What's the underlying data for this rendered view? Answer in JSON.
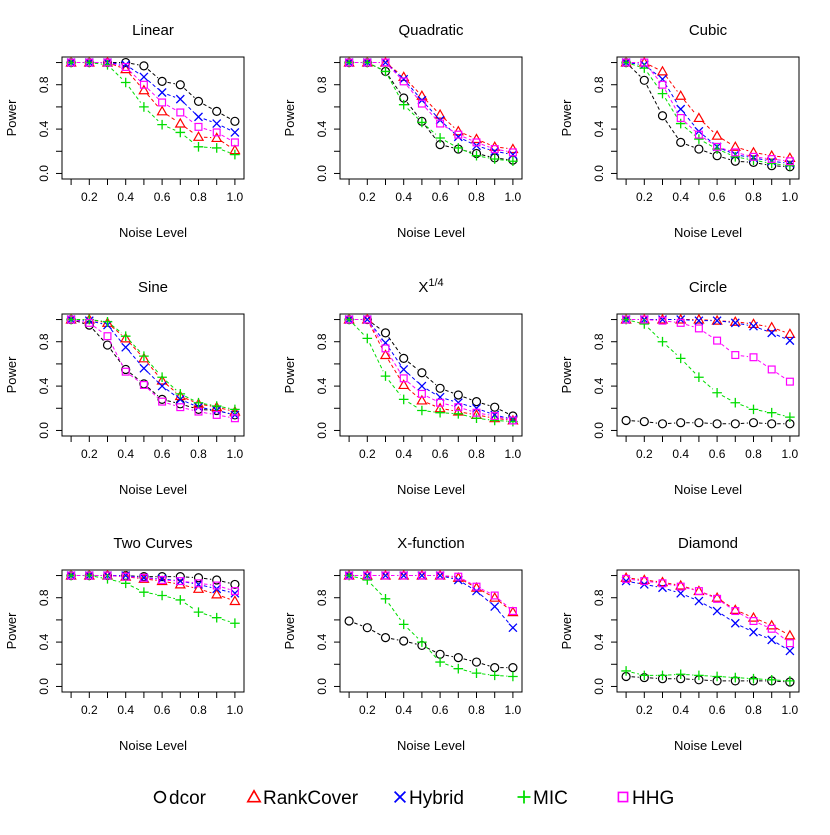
{
  "chart_data": [
    {
      "type": "line",
      "title": "Linear",
      "xlabel": "Noise Level",
      "ylabel": "Power",
      "x": [
        0.1,
        0.2,
        0.3,
        0.4,
        0.5,
        0.6,
        0.7,
        0.8,
        0.9,
        1.0
      ],
      "xlim": [
        0.05,
        1.05
      ],
      "ylim": [
        -0.05,
        1.05
      ],
      "xticks": [
        "0.2",
        "0.4",
        "0.6",
        "0.8",
        "1.0"
      ],
      "yticks": [
        "0.0",
        "0.4",
        "0.8"
      ],
      "series": [
        {
          "name": "dcor",
          "values": [
            1.0,
            1.0,
            1.0,
            1.0,
            0.97,
            0.83,
            0.8,
            0.65,
            0.56,
            0.47
          ]
        },
        {
          "name": "RankCover",
          "values": [
            1.0,
            1.0,
            1.0,
            0.94,
            0.75,
            0.56,
            0.45,
            0.33,
            0.32,
            0.21
          ]
        },
        {
          "name": "Hybrid",
          "values": [
            1.0,
            1.0,
            1.0,
            0.98,
            0.87,
            0.73,
            0.67,
            0.51,
            0.45,
            0.37
          ]
        },
        {
          "name": "MIC",
          "values": [
            1.0,
            1.0,
            0.98,
            0.82,
            0.6,
            0.44,
            0.37,
            0.24,
            0.23,
            0.17
          ]
        },
        {
          "name": "HHG",
          "values": [
            1.0,
            1.0,
            1.0,
            0.96,
            0.8,
            0.64,
            0.55,
            0.42,
            0.37,
            0.28
          ]
        }
      ]
    },
    {
      "type": "line",
      "title": "Quadratic",
      "xlabel": "Noise Level",
      "ylabel": "Power",
      "x": [
        0.1,
        0.2,
        0.3,
        0.4,
        0.5,
        0.6,
        0.7,
        0.8,
        0.9,
        1.0
      ],
      "xlim": [
        0.05,
        1.05
      ],
      "ylim": [
        -0.05,
        1.05
      ],
      "xticks": [
        "0.2",
        "0.4",
        "0.6",
        "0.8",
        "1.0"
      ],
      "yticks": [
        "0.0",
        "0.4",
        "0.8"
      ],
      "series": [
        {
          "name": "dcor",
          "values": [
            1.0,
            1.0,
            0.92,
            0.68,
            0.47,
            0.26,
            0.22,
            0.18,
            0.14,
            0.12
          ]
        },
        {
          "name": "RankCover",
          "values": [
            1.0,
            1.0,
            1.0,
            0.87,
            0.7,
            0.53,
            0.38,
            0.31,
            0.24,
            0.22
          ]
        },
        {
          "name": "Hybrid",
          "values": [
            1.0,
            1.0,
            1.0,
            0.85,
            0.66,
            0.48,
            0.33,
            0.25,
            0.2,
            0.17
          ]
        },
        {
          "name": "MIC",
          "values": [
            1.0,
            1.0,
            0.92,
            0.62,
            0.46,
            0.32,
            0.23,
            0.16,
            0.13,
            0.11
          ]
        },
        {
          "name": "HHG",
          "values": [
            1.0,
            1.0,
            1.0,
            0.83,
            0.63,
            0.45,
            0.35,
            0.28,
            0.22,
            0.19
          ]
        }
      ]
    },
    {
      "type": "line",
      "title": "Cubic",
      "xlabel": "Noise Level",
      "ylabel": "Power",
      "x": [
        0.1,
        0.2,
        0.3,
        0.4,
        0.5,
        0.6,
        0.7,
        0.8,
        0.9,
        1.0
      ],
      "xlim": [
        0.05,
        1.05
      ],
      "ylim": [
        -0.05,
        1.05
      ],
      "xticks": [
        "0.2",
        "0.4",
        "0.6",
        "0.8",
        "1.0"
      ],
      "yticks": [
        "0.0",
        "0.4",
        "0.8"
      ],
      "series": [
        {
          "name": "dcor",
          "values": [
            1.0,
            0.84,
            0.52,
            0.28,
            0.22,
            0.16,
            0.11,
            0.1,
            0.07,
            0.06
          ]
        },
        {
          "name": "RankCover",
          "values": [
            1.0,
            1.0,
            0.92,
            0.7,
            0.5,
            0.34,
            0.24,
            0.19,
            0.16,
            0.14
          ]
        },
        {
          "name": "Hybrid",
          "values": [
            1.0,
            0.98,
            0.85,
            0.58,
            0.38,
            0.24,
            0.17,
            0.14,
            0.11,
            0.09
          ]
        },
        {
          "name": "MIC",
          "values": [
            1.0,
            0.95,
            0.72,
            0.45,
            0.31,
            0.22,
            0.15,
            0.12,
            0.09,
            0.07
          ]
        },
        {
          "name": "HHG",
          "values": [
            1.0,
            1.0,
            0.8,
            0.5,
            0.35,
            0.24,
            0.19,
            0.15,
            0.13,
            0.11
          ]
        }
      ]
    },
    {
      "type": "line",
      "title": "Sine",
      "xlabel": "Noise Level",
      "ylabel": "Power",
      "x": [
        0.1,
        0.2,
        0.3,
        0.4,
        0.5,
        0.6,
        0.7,
        0.8,
        0.9,
        1.0
      ],
      "xlim": [
        0.05,
        1.05
      ],
      "ylim": [
        -0.05,
        1.05
      ],
      "xticks": [
        "0.2",
        "0.4",
        "0.6",
        "0.8",
        "1.0"
      ],
      "yticks": [
        "0.0",
        "0.4",
        "0.8"
      ],
      "series": [
        {
          "name": "dcor",
          "values": [
            1.0,
            0.95,
            0.77,
            0.55,
            0.42,
            0.28,
            0.24,
            0.19,
            0.18,
            0.14
          ]
        },
        {
          "name": "RankCover",
          "values": [
            1.0,
            1.0,
            0.97,
            0.83,
            0.65,
            0.45,
            0.31,
            0.24,
            0.21,
            0.17
          ]
        },
        {
          "name": "Hybrid",
          "values": [
            1.0,
            0.99,
            0.95,
            0.75,
            0.56,
            0.4,
            0.28,
            0.21,
            0.18,
            0.14
          ]
        },
        {
          "name": "MIC",
          "values": [
            1.0,
            1.0,
            0.98,
            0.85,
            0.67,
            0.48,
            0.33,
            0.25,
            0.22,
            0.19
          ]
        },
        {
          "name": "HHG",
          "values": [
            1.0,
            0.97,
            0.85,
            0.53,
            0.41,
            0.26,
            0.21,
            0.17,
            0.14,
            0.11
          ]
        }
      ]
    },
    {
      "type": "line",
      "title": "X",
      "title_superscript": "1/4",
      "xlabel": "Noise Level",
      "ylabel": "Power",
      "x": [
        0.1,
        0.2,
        0.3,
        0.4,
        0.5,
        0.6,
        0.7,
        0.8,
        0.9,
        1.0
      ],
      "xlim": [
        0.05,
        1.05
      ],
      "ylim": [
        -0.05,
        1.05
      ],
      "xticks": [
        "0.2",
        "0.4",
        "0.6",
        "0.8",
        "1.0"
      ],
      "yticks": [
        "0.0",
        "0.4",
        "0.8"
      ],
      "series": [
        {
          "name": "dcor",
          "values": [
            1.0,
            1.0,
            0.88,
            0.65,
            0.52,
            0.38,
            0.32,
            0.26,
            0.21,
            0.13
          ]
        },
        {
          "name": "RankCover",
          "values": [
            1.0,
            1.0,
            0.68,
            0.41,
            0.27,
            0.2,
            0.17,
            0.14,
            0.11,
            0.09
          ]
        },
        {
          "name": "Hybrid",
          "values": [
            1.0,
            1.0,
            0.79,
            0.55,
            0.4,
            0.3,
            0.25,
            0.2,
            0.14,
            0.1
          ]
        },
        {
          "name": "MIC",
          "values": [
            1.0,
            0.83,
            0.49,
            0.28,
            0.18,
            0.16,
            0.15,
            0.11,
            0.09,
            0.08
          ]
        },
        {
          "name": "HHG",
          "values": [
            1.0,
            1.0,
            0.74,
            0.47,
            0.33,
            0.25,
            0.21,
            0.16,
            0.13,
            0.09
          ]
        }
      ]
    },
    {
      "type": "line",
      "title": "Circle",
      "xlabel": "Noise Level",
      "ylabel": "Power",
      "x": [
        0.1,
        0.2,
        0.3,
        0.4,
        0.5,
        0.6,
        0.7,
        0.8,
        0.9,
        1.0
      ],
      "xlim": [
        0.05,
        1.05
      ],
      "ylim": [
        -0.05,
        1.05
      ],
      "xticks": [
        "0.2",
        "0.4",
        "0.6",
        "0.8",
        "1.0"
      ],
      "yticks": [
        "0.0",
        "0.4",
        "0.8"
      ],
      "series": [
        {
          "name": "dcor",
          "values": [
            0.09,
            0.08,
            0.06,
            0.07,
            0.07,
            0.06,
            0.06,
            0.07,
            0.06,
            0.06
          ]
        },
        {
          "name": "RankCover",
          "values": [
            1.0,
            1.0,
            1.0,
            1.0,
            1.0,
            0.99,
            0.98,
            0.96,
            0.93,
            0.87
          ]
        },
        {
          "name": "Hybrid",
          "values": [
            1.0,
            1.0,
            1.0,
            1.0,
            0.99,
            0.99,
            0.97,
            0.94,
            0.88,
            0.81
          ]
        },
        {
          "name": "MIC",
          "values": [
            1.0,
            0.96,
            0.8,
            0.65,
            0.48,
            0.34,
            0.25,
            0.19,
            0.16,
            0.12
          ]
        },
        {
          "name": "HHG",
          "values": [
            1.0,
            1.0,
            0.99,
            0.97,
            0.92,
            0.81,
            0.68,
            0.66,
            0.55,
            0.44
          ]
        }
      ]
    },
    {
      "type": "line",
      "title": "Two Curves",
      "xlabel": "Noise Level",
      "ylabel": "Power",
      "x": [
        0.1,
        0.2,
        0.3,
        0.4,
        0.5,
        0.6,
        0.7,
        0.8,
        0.9,
        1.0
      ],
      "xlim": [
        0.05,
        1.05
      ],
      "ylim": [
        -0.05,
        1.05
      ],
      "xticks": [
        "0.2",
        "0.4",
        "0.6",
        "0.8",
        "1.0"
      ],
      "yticks": [
        "0.0",
        "0.4",
        "0.8"
      ],
      "series": [
        {
          "name": "dcor",
          "values": [
            1.0,
            1.0,
            1.0,
            1.0,
            0.99,
            0.99,
            0.99,
            0.98,
            0.96,
            0.92
          ]
        },
        {
          "name": "RankCover",
          "values": [
            1.0,
            1.0,
            1.0,
            0.99,
            0.97,
            0.95,
            0.92,
            0.88,
            0.83,
            0.77
          ]
        },
        {
          "name": "Hybrid",
          "values": [
            1.0,
            1.0,
            1.0,
            1.0,
            0.98,
            0.97,
            0.95,
            0.92,
            0.88,
            0.84
          ]
        },
        {
          "name": "MIC",
          "values": [
            1.0,
            1.0,
            0.97,
            0.93,
            0.85,
            0.82,
            0.78,
            0.67,
            0.62,
            0.57
          ]
        },
        {
          "name": "HHG",
          "values": [
            1.0,
            1.0,
            1.0,
            0.99,
            0.98,
            0.96,
            0.95,
            0.93,
            0.91,
            0.86
          ]
        }
      ]
    },
    {
      "type": "line",
      "title": "X-function",
      "xlabel": "Noise Level",
      "ylabel": "Power",
      "x": [
        0.1,
        0.2,
        0.3,
        0.4,
        0.5,
        0.6,
        0.7,
        0.8,
        0.9,
        1.0
      ],
      "xlim": [
        0.05,
        1.05
      ],
      "ylim": [
        -0.05,
        1.05
      ],
      "xticks": [
        "0.2",
        "0.4",
        "0.6",
        "0.8",
        "1.0"
      ],
      "yticks": [
        "0.0",
        "0.4",
        "0.8"
      ],
      "series": [
        {
          "name": "dcor",
          "values": [
            0.59,
            0.53,
            0.44,
            0.41,
            0.37,
            0.29,
            0.26,
            0.22,
            0.17,
            0.17
          ]
        },
        {
          "name": "RankCover",
          "values": [
            1.0,
            1.0,
            1.0,
            1.0,
            1.0,
            1.0,
            0.98,
            0.89,
            0.8,
            0.67
          ]
        },
        {
          "name": "Hybrid",
          "values": [
            1.0,
            1.0,
            1.0,
            1.0,
            1.0,
            1.0,
            0.96,
            0.86,
            0.72,
            0.53
          ]
        },
        {
          "name": "MIC",
          "values": [
            1.0,
            0.96,
            0.79,
            0.56,
            0.4,
            0.22,
            0.16,
            0.12,
            0.1,
            0.09
          ]
        },
        {
          "name": "HHG",
          "values": [
            1.0,
            1.0,
            1.0,
            1.0,
            1.0,
            1.0,
            0.99,
            0.9,
            0.82,
            0.68
          ]
        }
      ]
    },
    {
      "type": "line",
      "title": "Diamond",
      "xlabel": "Noise Level",
      "ylabel": "Power",
      "x": [
        0.1,
        0.2,
        0.3,
        0.4,
        0.5,
        0.6,
        0.7,
        0.8,
        0.9,
        1.0
      ],
      "xlim": [
        0.05,
        1.05
      ],
      "ylim": [
        -0.05,
        1.05
      ],
      "xticks": [
        "0.2",
        "0.4",
        "0.6",
        "0.8",
        "1.0"
      ],
      "yticks": [
        "0.0",
        "0.4",
        "0.8"
      ],
      "series": [
        {
          "name": "dcor",
          "values": [
            0.09,
            0.08,
            0.07,
            0.07,
            0.06,
            0.05,
            0.05,
            0.05,
            0.05,
            0.04
          ]
        },
        {
          "name": "RankCover",
          "values": [
            0.98,
            0.96,
            0.94,
            0.91,
            0.86,
            0.8,
            0.69,
            0.62,
            0.55,
            0.46
          ]
        },
        {
          "name": "Hybrid",
          "values": [
            0.95,
            0.92,
            0.89,
            0.84,
            0.77,
            0.68,
            0.57,
            0.49,
            0.42,
            0.32
          ]
        },
        {
          "name": "MIC",
          "values": [
            0.14,
            0.1,
            0.1,
            0.11,
            0.1,
            0.09,
            0.08,
            0.07,
            0.06,
            0.05
          ]
        },
        {
          "name": "HHG",
          "values": [
            0.97,
            0.95,
            0.93,
            0.9,
            0.86,
            0.79,
            0.68,
            0.59,
            0.52,
            0.39
          ]
        }
      ]
    }
  ],
  "legend": {
    "items": [
      {
        "label": "dcor",
        "color": "#000000",
        "marker": "circle"
      },
      {
        "label": "RankCover",
        "color": "#ff0000",
        "marker": "triangle"
      },
      {
        "label": "Hybrid",
        "color": "#0000ff",
        "marker": "cross"
      },
      {
        "label": "MIC",
        "color": "#00dd00",
        "marker": "plus"
      },
      {
        "label": "HHG",
        "color": "#ff00ff",
        "marker": "square"
      }
    ]
  }
}
